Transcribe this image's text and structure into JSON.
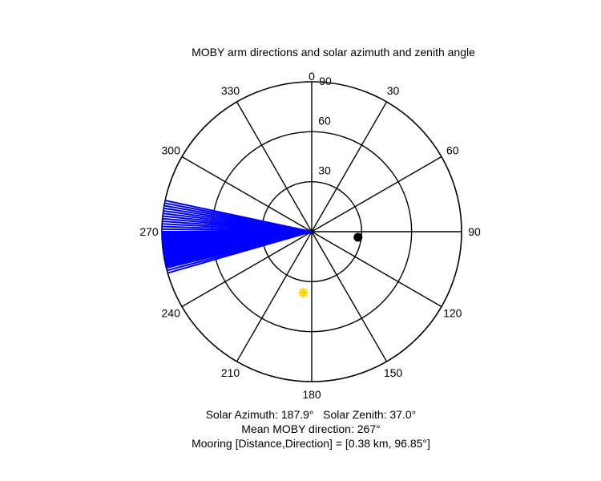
{
  "chart_data": {
    "type": "polar",
    "title": "MOBY arm directions and solar azimuth and zenith angle",
    "angle_ticks": [
      {
        "angle": 0,
        "label": "0"
      },
      {
        "angle": 30,
        "label": "30"
      },
      {
        "angle": 60,
        "label": "60"
      },
      {
        "angle": 90,
        "label": "90"
      },
      {
        "angle": 120,
        "label": "120"
      },
      {
        "angle": 150,
        "label": "150"
      },
      {
        "angle": 180,
        "label": "180"
      },
      {
        "angle": 210,
        "label": "210"
      },
      {
        "angle": 240,
        "label": "240"
      },
      {
        "angle": 270,
        "label": "270"
      },
      {
        "angle": 300,
        "label": "300"
      },
      {
        "angle": 330,
        "label": "330"
      }
    ],
    "radial_ticks": [
      {
        "value": 30,
        "label": "30"
      },
      {
        "value": 60,
        "label": "60"
      },
      {
        "value": 90,
        "label": "90"
      }
    ],
    "rlim": [
      0,
      90
    ],
    "angle_direction": "clockwise",
    "zero_location": "top",
    "arm_directions": {
      "color": "#0000ff",
      "radius": 90,
      "angles": [
        254,
        255,
        256,
        256.5,
        257,
        257.5,
        258,
        258.5,
        259,
        259.5,
        260,
        260.5,
        261,
        261.5,
        262,
        262.5,
        263,
        263.5,
        264,
        264.5,
        265,
        265.5,
        266,
        266.5,
        267,
        267.5,
        268,
        268.5,
        269,
        269.5,
        270,
        271,
        272,
        273,
        274,
        275,
        276,
        277,
        278,
        279,
        280,
        281,
        282
      ]
    },
    "mooring_marker": {
      "angle": 96.85,
      "radius": 28,
      "color": "#000000"
    },
    "sun_marker": {
      "angle": 187.9,
      "radius": 37.0,
      "color": "#ffd700"
    }
  },
  "captions": {
    "line1": "Solar Azimuth: 187.9°   Solar Zenith: 37.0°",
    "line2": "Mean MOBY direction: 267°",
    "line3": "Mooring [Distance,Direction] = [0.38 km, 96.85°]"
  }
}
